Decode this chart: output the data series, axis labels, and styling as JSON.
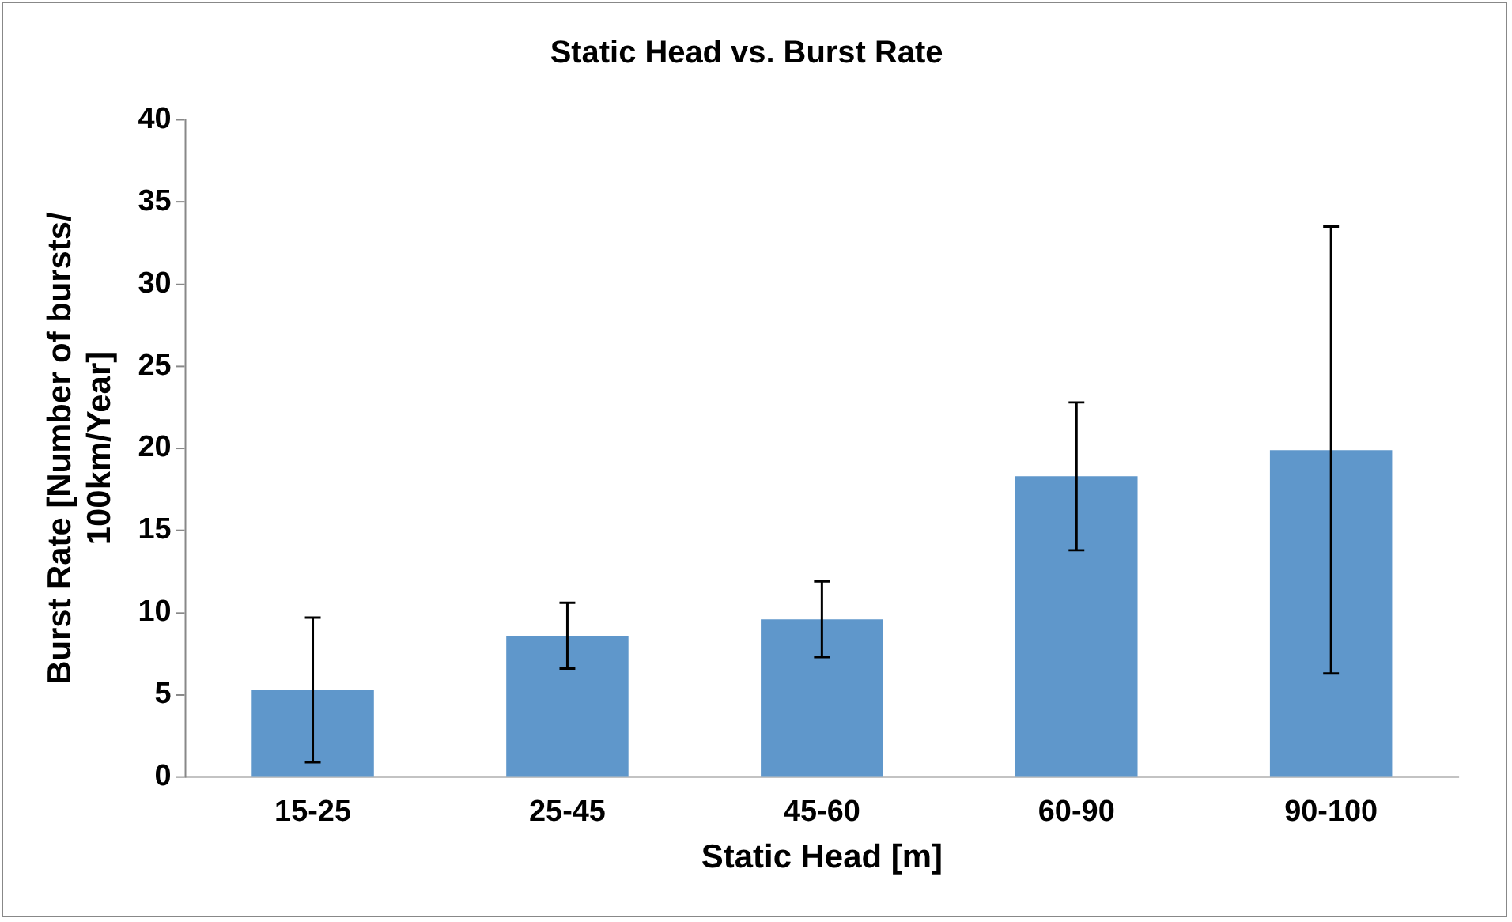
{
  "chart_data": {
    "type": "bar",
    "title": "Static Head vs. Burst Rate",
    "xlabel": "Static Head [m]",
    "ylabel": "Burst Rate [Number of bursts/\n100km/Year]",
    "categories": [
      "15-25",
      "25-45",
      "45-60",
      "60-90",
      "90-100"
    ],
    "values": [
      5.3,
      8.6,
      9.6,
      18.3,
      19.9
    ],
    "errors": [
      4.4,
      2.0,
      2.3,
      4.5,
      13.6
    ],
    "color": "#5f97cb",
    "ylim": [
      0,
      40
    ],
    "yticks": [
      0,
      5,
      10,
      15,
      20,
      25,
      30,
      35,
      40
    ],
    "grid": false,
    "legend": false
  }
}
